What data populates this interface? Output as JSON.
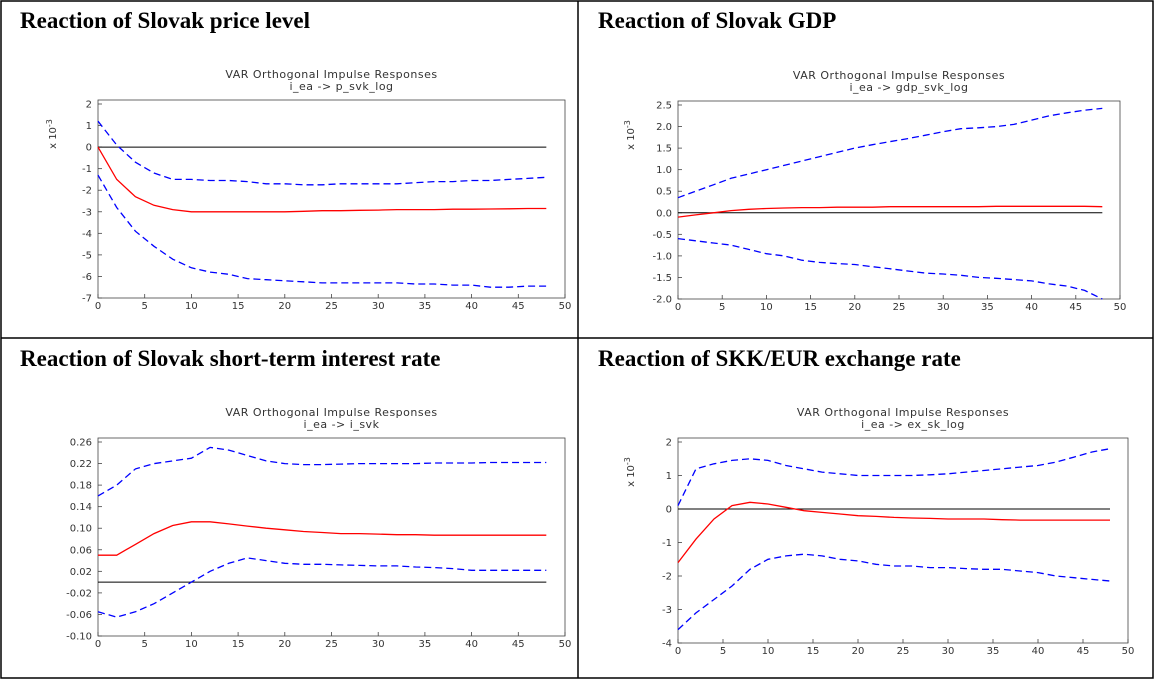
{
  "chart_data": [
    {
      "type": "line",
      "heading": "Reaction of Slovak price level",
      "title": "VAR Orthogonal Impulse Responses",
      "subtitle": "i_ea -> p_svk_log",
      "y_scale": {
        "base": "x 10",
        "exponent": "-3"
      },
      "x": [
        0,
        2,
        4,
        6,
        8,
        10,
        12,
        14,
        16,
        18,
        20,
        22,
        24,
        26,
        28,
        30,
        32,
        34,
        36,
        38,
        40,
        42,
        44,
        46,
        48
      ],
      "xlim": [
        0,
        50
      ],
      "xticks": [
        0,
        5,
        10,
        15,
        20,
        25,
        30,
        35,
        40,
        45,
        50
      ],
      "ylim": [
        -7,
        2
      ],
      "yticks": [
        2,
        1,
        0,
        -1,
        -2,
        -3,
        -4,
        -5,
        -6,
        -7
      ],
      "hline": 0,
      "series": [
        {
          "color": "#ff0000",
          "style": "solid",
          "values": [
            0,
            -1.5,
            -2.3,
            -2.7,
            -2.9,
            -3.0,
            -3.0,
            -3.0,
            -3.0,
            -3.0,
            -3.0,
            -2.98,
            -2.95,
            -2.95,
            -2.93,
            -2.92,
            -2.9,
            -2.9,
            -2.9,
            -2.88,
            -2.88,
            -2.87,
            -2.86,
            -2.85,
            -2.85
          ]
        },
        {
          "color": "#0000ff",
          "style": "dashed",
          "values": [
            1.2,
            0.1,
            -0.7,
            -1.2,
            -1.5,
            -1.5,
            -1.55,
            -1.55,
            -1.6,
            -1.7,
            -1.7,
            -1.75,
            -1.75,
            -1.7,
            -1.7,
            -1.7,
            -1.7,
            -1.65,
            -1.6,
            -1.6,
            -1.55,
            -1.55,
            -1.5,
            -1.45,
            -1.4
          ]
        },
        {
          "color": "#0000ff",
          "style": "dashed",
          "values": [
            -1.3,
            -2.8,
            -3.9,
            -4.6,
            -5.2,
            -5.6,
            -5.8,
            -5.9,
            -6.1,
            -6.15,
            -6.2,
            -6.25,
            -6.3,
            -6.3,
            -6.3,
            -6.3,
            -6.3,
            -6.35,
            -6.35,
            -6.4,
            -6.4,
            -6.5,
            -6.5,
            -6.45,
            -6.45
          ]
        }
      ]
    },
    {
      "type": "line",
      "heading": "Reaction of Slovak GDP",
      "title": "VAR Orthogonal Impulse Responses",
      "subtitle": "i_ea -> gdp_svk_log",
      "y_scale": {
        "base": "x 10",
        "exponent": "-3"
      },
      "x": [
        0,
        2,
        4,
        6,
        8,
        10,
        12,
        14,
        16,
        18,
        20,
        22,
        24,
        26,
        28,
        30,
        32,
        34,
        36,
        38,
        40,
        42,
        44,
        46,
        48
      ],
      "xlim": [
        0,
        50
      ],
      "xticks": [
        0,
        5,
        10,
        15,
        20,
        25,
        30,
        35,
        40,
        45,
        50
      ],
      "ylim": [
        -2,
        2.5
      ],
      "yticks": [
        2.5,
        {
          "value": 2,
          "label": "2.0"
        },
        1.5,
        {
          "value": 1,
          "label": "1.0"
        },
        0.5,
        {
          "value": 0,
          "label": "0.0"
        },
        -0.5,
        {
          "value": -1,
          "label": "-1.0"
        },
        -1.5,
        {
          "value": -2,
          "label": "-2.0"
        }
      ],
      "hline": 0,
      "series": [
        {
          "color": "#ff0000",
          "style": "solid",
          "values": [
            -0.1,
            -0.05,
            0,
            0.05,
            0.08,
            0.1,
            0.11,
            0.12,
            0.12,
            0.13,
            0.13,
            0.13,
            0.14,
            0.14,
            0.14,
            0.14,
            0.14,
            0.14,
            0.15,
            0.15,
            0.15,
            0.15,
            0.15,
            0.15,
            0.14
          ]
        },
        {
          "color": "#0000ff",
          "style": "dashed",
          "values": [
            0.35,
            0.5,
            0.65,
            0.8,
            0.9,
            1.0,
            1.1,
            1.2,
            1.3,
            1.4,
            1.5,
            1.58,
            1.65,
            1.72,
            1.8,
            1.88,
            1.95,
            1.97,
            2.0,
            2.05,
            2.15,
            2.25,
            2.32,
            2.38,
            2.42
          ]
        },
        {
          "color": "#0000ff",
          "style": "dashed",
          "values": [
            -0.6,
            -0.65,
            -0.7,
            -0.75,
            -0.85,
            -0.95,
            -1.0,
            -1.1,
            -1.15,
            -1.18,
            -1.2,
            -1.25,
            -1.3,
            -1.35,
            -1.4,
            -1.42,
            -1.45,
            -1.5,
            -1.52,
            -1.55,
            -1.58,
            -1.65,
            -1.7,
            -1.8,
            -2.0
          ]
        }
      ]
    },
    {
      "type": "line",
      "heading": "Reaction of Slovak short-term interest rate",
      "title": "VAR Orthogonal Impulse Responses",
      "subtitle": "i_ea -> i_svk",
      "x": [
        0,
        2,
        4,
        6,
        8,
        10,
        12,
        14,
        16,
        18,
        20,
        22,
        24,
        26,
        28,
        30,
        32,
        34,
        36,
        38,
        40,
        42,
        44,
        46,
        48
      ],
      "xlim": [
        0,
        50
      ],
      "xticks": [
        0,
        5,
        10,
        15,
        20,
        25,
        30,
        35,
        40,
        45,
        50
      ],
      "ylim": [
        -0.1,
        0.26
      ],
      "yticks": [
        0.26,
        0.22,
        0.18,
        0.14,
        {
          "value": 0.1,
          "label": "0.10"
        },
        0.06,
        0.02,
        -0.02,
        -0.06,
        {
          "value": -0.1,
          "label": "-0.10"
        }
      ],
      "hline": 0,
      "series": [
        {
          "color": "#ff0000",
          "style": "solid",
          "values": [
            0.05,
            0.05,
            0.07,
            0.09,
            0.105,
            0.112,
            0.112,
            0.108,
            0.104,
            0.1,
            0.097,
            0.094,
            0.092,
            0.09,
            0.09,
            0.089,
            0.088,
            0.088,
            0.087,
            0.087,
            0.087,
            0.087,
            0.087,
            0.087,
            0.087
          ]
        },
        {
          "color": "#0000ff",
          "style": "dashed",
          "values": [
            0.16,
            0.18,
            0.21,
            0.22,
            0.225,
            0.23,
            0.25,
            0.245,
            0.235,
            0.225,
            0.22,
            0.218,
            0.218,
            0.219,
            0.22,
            0.22,
            0.22,
            0.22,
            0.221,
            0.221,
            0.221,
            0.222,
            0.222,
            0.222,
            0.222
          ]
        },
        {
          "color": "#0000ff",
          "style": "dashed",
          "values": [
            -0.055,
            -0.065,
            -0.055,
            -0.04,
            -0.02,
            0,
            0.02,
            0.035,
            0.045,
            0.04,
            0.035,
            0.033,
            0.033,
            0.032,
            0.031,
            0.03,
            0.03,
            0.028,
            0.027,
            0.025,
            0.022,
            0.022,
            0.022,
            0.022,
            0.022
          ]
        }
      ]
    },
    {
      "type": "line",
      "heading": "Reaction of SKK/EUR exchange rate",
      "title": "VAR Orthogonal Impulse Responses",
      "subtitle": "i_ea -> ex_sk_log",
      "y_scale": {
        "base": "x 10",
        "exponent": "-3"
      },
      "x": [
        0,
        2,
        4,
        6,
        8,
        10,
        12,
        14,
        16,
        18,
        20,
        22,
        24,
        26,
        28,
        30,
        32,
        34,
        36,
        38,
        40,
        42,
        44,
        46,
        48
      ],
      "xlim": [
        0,
        50
      ],
      "xticks": [
        0,
        5,
        10,
        15,
        20,
        25,
        30,
        35,
        40,
        45,
        50
      ],
      "ylim": [
        -4,
        2
      ],
      "yticks": [
        2,
        1,
        0,
        -1,
        -2,
        -3,
        -4
      ],
      "hline": 0,
      "series": [
        {
          "color": "#ff0000",
          "style": "solid",
          "values": [
            -1.6,
            -0.9,
            -0.3,
            0.1,
            0.2,
            0.15,
            0.05,
            -0.05,
            -0.1,
            -0.15,
            -0.2,
            -0.22,
            -0.25,
            -0.27,
            -0.28,
            -0.3,
            -0.3,
            -0.3,
            -0.32,
            -0.33,
            -0.33,
            -0.33,
            -0.33,
            -0.33,
            -0.33
          ]
        },
        {
          "color": "#0000ff",
          "style": "dashed",
          "values": [
            0.1,
            1.2,
            1.35,
            1.45,
            1.5,
            1.45,
            1.3,
            1.2,
            1.1,
            1.05,
            1.0,
            1.0,
            1.0,
            1.0,
            1.02,
            1.05,
            1.1,
            1.15,
            1.2,
            1.25,
            1.3,
            1.4,
            1.55,
            1.7,
            1.8
          ]
        },
        {
          "color": "#0000ff",
          "style": "dashed",
          "values": [
            -3.6,
            -3.1,
            -2.7,
            -2.3,
            -1.8,
            -1.5,
            -1.4,
            -1.35,
            -1.4,
            -1.5,
            -1.55,
            -1.65,
            -1.7,
            -1.7,
            -1.75,
            -1.75,
            -1.78,
            -1.8,
            -1.8,
            -1.85,
            -1.9,
            -2.0,
            -2.05,
            -2.1,
            -2.15
          ]
        }
      ]
    }
  ]
}
